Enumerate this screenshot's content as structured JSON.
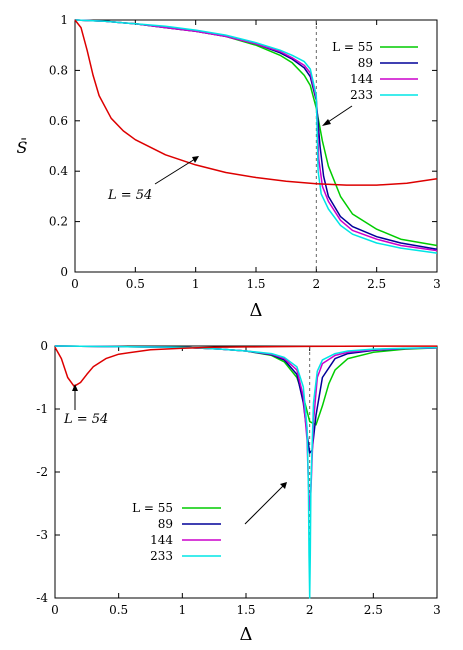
{
  "chart_data": [
    {
      "type": "line",
      "xlabel": "Δ",
      "ylabel": "S̄",
      "xlim": [
        0,
        3
      ],
      "ylim": [
        0,
        1
      ],
      "xticks": [
        "0",
        "0.5",
        "1",
        "1.5",
        "2",
        "2.5",
        "3"
      ],
      "yticks": [
        "0",
        "0.2",
        "0.4",
        "0.6",
        "0.8",
        "1"
      ],
      "xtick_values": [
        0,
        0.5,
        1,
        1.5,
        2,
        2.5,
        3
      ],
      "ytick_values": [
        0,
        0.2,
        0.4,
        0.6,
        0.8,
        1
      ],
      "grid": false,
      "legend": "top-right",
      "vline": 2,
      "series": [
        {
          "name": "L = 55",
          "color": "#00cc00",
          "x": [
            0,
            0.25,
            0.5,
            0.75,
            1,
            1.25,
            1.5,
            1.7,
            1.8,
            1.9,
            1.95,
            2,
            2.05,
            2.1,
            2.2,
            2.3,
            2.5,
            2.7,
            3
          ],
          "y": [
            1,
            0.995,
            0.985,
            0.97,
            0.955,
            0.935,
            0.9,
            0.86,
            0.83,
            0.78,
            0.74,
            0.65,
            0.52,
            0.42,
            0.3,
            0.23,
            0.17,
            0.13,
            0.105
          ]
        },
        {
          "name": "89",
          "color": "#000099",
          "x": [
            0,
            0.25,
            0.5,
            0.75,
            1,
            1.25,
            1.5,
            1.7,
            1.8,
            1.9,
            1.95,
            2,
            2.03,
            2.06,
            2.1,
            2.2,
            2.3,
            2.5,
            2.7,
            3
          ],
          "y": [
            1,
            0.995,
            0.985,
            0.97,
            0.955,
            0.935,
            0.905,
            0.87,
            0.845,
            0.81,
            0.775,
            0.68,
            0.5,
            0.38,
            0.3,
            0.22,
            0.18,
            0.14,
            0.115,
            0.09
          ]
        },
        {
          "name": "144",
          "color": "#cc00cc",
          "x": [
            0,
            0.25,
            0.5,
            0.75,
            1,
            1.25,
            1.5,
            1.7,
            1.8,
            1.9,
            1.95,
            2,
            2.02,
            2.05,
            2.1,
            2.2,
            2.3,
            2.5,
            2.7,
            3
          ],
          "y": [
            1,
            0.995,
            0.985,
            0.97,
            0.955,
            0.935,
            0.905,
            0.875,
            0.85,
            0.82,
            0.79,
            0.69,
            0.45,
            0.34,
            0.28,
            0.205,
            0.165,
            0.13,
            0.105,
            0.085
          ]
        },
        {
          "name": "233",
          "color": "#00e5e5",
          "x": [
            0,
            0.25,
            0.5,
            0.75,
            1,
            1.25,
            1.5,
            1.7,
            1.8,
            1.9,
            1.95,
            2,
            2.015,
            2.04,
            2.1,
            2.2,
            2.3,
            2.5,
            2.7,
            3
          ],
          "y": [
            1,
            0.995,
            0.985,
            0.975,
            0.96,
            0.94,
            0.91,
            0.88,
            0.86,
            0.835,
            0.805,
            0.7,
            0.4,
            0.31,
            0.25,
            0.185,
            0.15,
            0.115,
            0.095,
            0.075
          ]
        },
        {
          "name": "L = 54",
          "color": "#dd0000",
          "x": [
            0,
            0.05,
            0.1,
            0.15,
            0.2,
            0.3,
            0.4,
            0.5,
            0.75,
            1,
            1.25,
            1.5,
            1.75,
            2,
            2.25,
            2.5,
            2.75,
            3
          ],
          "y": [
            1,
            0.97,
            0.88,
            0.78,
            0.7,
            0.61,
            0.56,
            0.525,
            0.465,
            0.425,
            0.395,
            0.375,
            0.36,
            0.35,
            0.345,
            0.345,
            0.352,
            0.37
          ]
        }
      ],
      "legend_entries": [
        "L = 55",
        "89",
        "144",
        "233"
      ],
      "annotations": [
        {
          "text": "L = 54"
        }
      ]
    },
    {
      "type": "line",
      "xlabel": "Δ",
      "ylabel": "",
      "xlim": [
        0,
        3
      ],
      "ylim": [
        -4,
        0
      ],
      "xticks": [
        "0",
        "0.5",
        "1",
        "1.5",
        "2",
        "2.5",
        "3"
      ],
      "yticks": [
        "0",
        "-1",
        "-2",
        "-3",
        "-4"
      ],
      "xtick_values": [
        0,
        0.5,
        1,
        1.5,
        2,
        2.5,
        3
      ],
      "ytick_values": [
        0,
        -1,
        -2,
        -3,
        -4
      ],
      "grid": false,
      "legend": "bottom-left",
      "vline": 2,
      "series": [
        {
          "name": "L = 55",
          "color": "#00cc00",
          "x": [
            0,
            0.5,
            1,
            1.3,
            1.5,
            1.7,
            1.8,
            1.9,
            1.95,
            2,
            2.05,
            2.1,
            2.15,
            2.2,
            2.3,
            2.5,
            2.75,
            3
          ],
          "y": [
            0,
            -0.01,
            -0.02,
            -0.05,
            -0.08,
            -0.15,
            -0.25,
            -0.5,
            -0.8,
            -1.2,
            -1.25,
            -0.95,
            -0.6,
            -0.38,
            -0.2,
            -0.1,
            -0.05,
            -0.03
          ]
        },
        {
          "name": "89",
          "color": "#000099",
          "x": [
            0,
            0.5,
            1,
            1.3,
            1.5,
            1.7,
            1.8,
            1.9,
            1.95,
            1.98,
            2,
            2.02,
            2.05,
            2.1,
            2.2,
            2.3,
            2.5,
            2.75,
            3
          ],
          "y": [
            0,
            -0.01,
            -0.02,
            -0.05,
            -0.08,
            -0.14,
            -0.22,
            -0.45,
            -0.9,
            -1.4,
            -1.7,
            -1.65,
            -1.1,
            -0.5,
            -0.2,
            -0.12,
            -0.07,
            -0.04,
            -0.03
          ]
        },
        {
          "name": "144",
          "color": "#cc00cc",
          "x": [
            0,
            0.5,
            1,
            1.3,
            1.5,
            1.7,
            1.8,
            1.9,
            1.95,
            1.98,
            1.99,
            2,
            2.01,
            2.03,
            2.06,
            2.1,
            2.2,
            2.3,
            2.5,
            2.75,
            3
          ],
          "y": [
            0,
            -0.01,
            -0.02,
            -0.05,
            -0.08,
            -0.13,
            -0.2,
            -0.38,
            -0.8,
            -1.5,
            -2.2,
            -2.6,
            -2.3,
            -1.2,
            -0.5,
            -0.28,
            -0.15,
            -0.1,
            -0.06,
            -0.04,
            -0.03
          ]
        },
        {
          "name": "233",
          "color": "#00e5e5",
          "x": [
            0,
            0.5,
            1,
            1.3,
            1.5,
            1.7,
            1.8,
            1.9,
            1.95,
            1.98,
            1.99,
            1.995,
            2,
            2.005,
            2.01,
            2.03,
            2.06,
            2.1,
            2.2,
            2.3,
            2.5,
            2.75,
            3
          ],
          "y": [
            0,
            -0.01,
            -0.02,
            -0.05,
            -0.08,
            -0.12,
            -0.18,
            -0.33,
            -0.65,
            -1.3,
            -2.2,
            -3.3,
            -4,
            -3.3,
            -2.2,
            -0.9,
            -0.4,
            -0.22,
            -0.12,
            -0.08,
            -0.05,
            -0.035,
            -0.025
          ]
        },
        {
          "name": "L = 54",
          "color": "#dd0000",
          "x": [
            0,
            0.05,
            0.1,
            0.15,
            0.2,
            0.25,
            0.3,
            0.4,
            0.5,
            0.75,
            1,
            1.25,
            1.5,
            1.75,
            2,
            2.25,
            2.5,
            3
          ],
          "y": [
            -0.02,
            -0.2,
            -0.5,
            -0.64,
            -0.58,
            -0.45,
            -0.33,
            -0.2,
            -0.13,
            -0.06,
            -0.035,
            -0.02,
            -0.015,
            -0.01,
            -0.007,
            -0.004,
            -0.002,
            -0.001
          ]
        }
      ],
      "legend_entries": [
        "L = 55",
        "89",
        "144",
        "233"
      ],
      "annotations": [
        {
          "text": "L = 54"
        }
      ]
    }
  ]
}
